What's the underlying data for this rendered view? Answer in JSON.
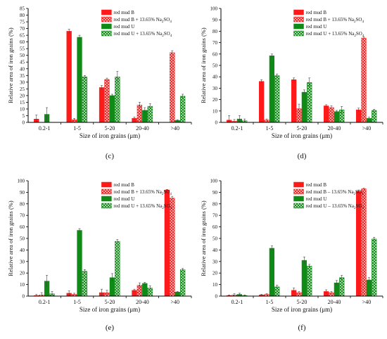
{
  "colors": {
    "red": "#ff1a1a",
    "green": "#0f8a16",
    "axis": "#000000",
    "error": "#444444"
  },
  "chart_data": [
    {
      "type": "bar",
      "panel_label": "(c)",
      "xlabel": "Size of iron grains (μm)",
      "ylabel": "Relative area of iron grains (%)",
      "ylim": [
        0,
        85
      ],
      "yticks": [
        0,
        5,
        10,
        15,
        20,
        25,
        30,
        35,
        40,
        45,
        50,
        55,
        60,
        65,
        70,
        75,
        80,
        85
      ],
      "categories": [
        "0.2-1",
        "1-5",
        "5-20",
        "20-40",
        ">40"
      ],
      "legend_position": "top-right",
      "series": [
        {
          "name": "red mud B",
          "pattern": "solid-red",
          "values": [
            2.5,
            68,
            26,
            3,
            0
          ],
          "errors": [
            3,
            1.5,
            1.5,
            1,
            0
          ]
        },
        {
          "name": "red mud B + 13.65% Na2SO4",
          "pattern": "hatch-red",
          "values": [
            0,
            2,
            32,
            13,
            52
          ],
          "errors": [
            0,
            1,
            1,
            2,
            1.5
          ]
        },
        {
          "name": "red mud U",
          "pattern": "solid-green",
          "values": [
            6,
            63.5,
            20,
            9,
            1.5
          ],
          "errors": [
            5,
            1.5,
            1,
            2,
            0.5
          ]
        },
        {
          "name": "red mud U + 13.65% Na2SO4",
          "pattern": "hatch-green",
          "values": [
            0,
            34,
            34,
            12,
            19.5
          ],
          "errors": [
            0,
            1,
            4,
            2,
            1.5
          ]
        }
      ]
    },
    {
      "type": "bar",
      "panel_label": "(d)",
      "xlabel": "Size of iron grains (μm)",
      "ylabel": "Relative area of iron grains (%)",
      "ylim": [
        0,
        100
      ],
      "yticks": [
        0,
        10,
        20,
        30,
        40,
        50,
        60,
        70,
        80,
        90,
        100
      ],
      "categories": [
        "0.2-1",
        "1-5",
        "5-20",
        "20-40",
        ">40"
      ],
      "legend_position": "top-right",
      "series": [
        {
          "name": "red mud B",
          "pattern": "solid-red",
          "values": [
            2,
            36,
            37.5,
            14.5,
            11
          ],
          "errors": [
            4,
            1.5,
            1.5,
            1,
            1.5
          ]
        },
        {
          "name": "red mud B + 13.65% Na2SO4",
          "pattern": "hatch-red",
          "values": [
            1,
            2,
            12,
            13,
            74
          ],
          "errors": [
            1.5,
            1,
            4,
            1.5,
            1
          ]
        },
        {
          "name": "red mud U",
          "pattern": "solid-green",
          "values": [
            3,
            58.5,
            26.5,
            9.5,
            3.5
          ],
          "errors": [
            3,
            1.5,
            2,
            1,
            1
          ]
        },
        {
          "name": "red mud U + 13.65% Na2SO4",
          "pattern": "hatch-green",
          "values": [
            1.5,
            41,
            35,
            11,
            10.5
          ],
          "errors": [
            1.5,
            1.5,
            4,
            3,
            1
          ]
        }
      ]
    },
    {
      "type": "bar",
      "panel_label": "(e)",
      "xlabel": "Size of iron grains (μm)",
      "ylabel": "Relative area of iron grains (%)",
      "ylim": [
        0,
        100
      ],
      "yticks": [
        0,
        10,
        20,
        30,
        40,
        50,
        60,
        70,
        80,
        90,
        100
      ],
      "categories": [
        "0.2-1",
        "1-5",
        "5-20",
        "20-40",
        ">40"
      ],
      "legend_position": "top-right",
      "series": [
        {
          "name": "red mud B",
          "pattern": "solid-red",
          "values": [
            0.5,
            2.5,
            3,
            5,
            92
          ],
          "errors": [
            1,
            2,
            3,
            1,
            0.5
          ]
        },
        {
          "name": "red mud B + 13.65% Na2SO4",
          "pattern": "hatch-red",
          "values": [
            1,
            1.5,
            3,
            9.5,
            85
          ],
          "errors": [
            2,
            1,
            2,
            2,
            1.5
          ]
        },
        {
          "name": "red mud U",
          "pattern": "solid-green",
          "values": [
            13,
            57,
            16,
            11,
            3.5
          ],
          "errors": [
            5,
            1.5,
            3.5,
            1,
            0.5
          ]
        },
        {
          "name": "red mud U + 13.65% Na2SO4",
          "pattern": "hatch-green",
          "values": [
            2,
            21.5,
            47.5,
            7,
            23
          ],
          "errors": [
            2,
            1.5,
            1.5,
            2,
            1
          ]
        }
      ]
    },
    {
      "type": "bar",
      "panel_label": "(f)",
      "xlabel": "Size of iron grains (μm)",
      "ylabel": "Relative area of iron grains (%)",
      "ylim": [
        0,
        100
      ],
      "yticks": [
        0,
        10,
        20,
        30,
        40,
        50,
        60,
        70,
        80,
        90,
        100
      ],
      "categories": [
        "0.2-1",
        "1-5",
        "5-20",
        "20-40",
        ">40"
      ],
      "legend_position": "top-right",
      "series": [
        {
          "name": "red mud B",
          "pattern": "solid-red",
          "values": [
            0.5,
            1,
            5,
            4,
            91
          ],
          "errors": [
            0.5,
            0.5,
            2,
            1.5,
            1
          ]
        },
        {
          "name": "red mud B – 13.65% Na2SO4",
          "pattern": "hatch-red",
          "values": [
            1,
            1.5,
            3,
            3,
            93
          ],
          "errors": [
            1,
            0.5,
            1,
            1,
            0.5
          ]
        },
        {
          "name": "red mud U",
          "pattern": "solid-green",
          "values": [
            1.5,
            41.5,
            31,
            11.5,
            14
          ],
          "errors": [
            1,
            2,
            3,
            2,
            2
          ]
        },
        {
          "name": "red mud U – 13.65% Na2SO4",
          "pattern": "hatch-green",
          "values": [
            0.5,
            8,
            26,
            16,
            49.5
          ],
          "errors": [
            0.5,
            1.5,
            1.5,
            2,
            1.5
          ]
        }
      ]
    }
  ]
}
